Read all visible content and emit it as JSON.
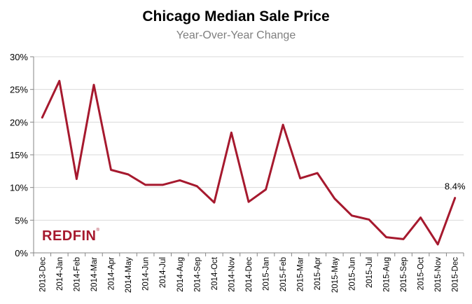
{
  "chart_data": {
    "type": "line",
    "title": "Chicago Median Sale Price",
    "subtitle": "Year-Over-Year Change",
    "xlabel": "",
    "ylabel": "",
    "ylim": [
      0,
      30
    ],
    "yticks": [
      "0%",
      "5%",
      "10%",
      "15%",
      "20%",
      "25%",
      "30%"
    ],
    "categories": [
      "2013-Dec",
      "2014-Jan",
      "2014-Feb",
      "2014-Mar",
      "2014-Apr",
      "2014-May",
      "2014-Jun",
      "2014-Jul",
      "2014-Aug",
      "2014-Sep",
      "2014-Oct",
      "2014-Nov",
      "2014-Dec",
      "2015-Jan",
      "2015-Feb",
      "2015-Mar",
      "2015-Apr",
      "2015-May",
      "2015-Jun",
      "2015-Jul",
      "2015-Aug",
      "2015-Sep",
      "2015-Oct",
      "2015-Nov",
      "2015-Dec"
    ],
    "series": [
      {
        "values": [
          20.7,
          26.3,
          11.3,
          25.7,
          12.7,
          12.0,
          10.4,
          10.4,
          11.1,
          10.2,
          7.7,
          18.4,
          7.8,
          9.7,
          19.6,
          11.4,
          12.2,
          8.3,
          5.7,
          5.1,
          2.4,
          2.1,
          5.4,
          1.3,
          8.4
        ],
        "color": "#a6192e"
      }
    ],
    "annotation": "8.4%",
    "grid": true,
    "axis_color": "#868686",
    "grid_color": "#d9d9d9"
  },
  "brand": {
    "logo_text": "REDFIN",
    "logo_mark": "®",
    "color": "#a6192e"
  }
}
